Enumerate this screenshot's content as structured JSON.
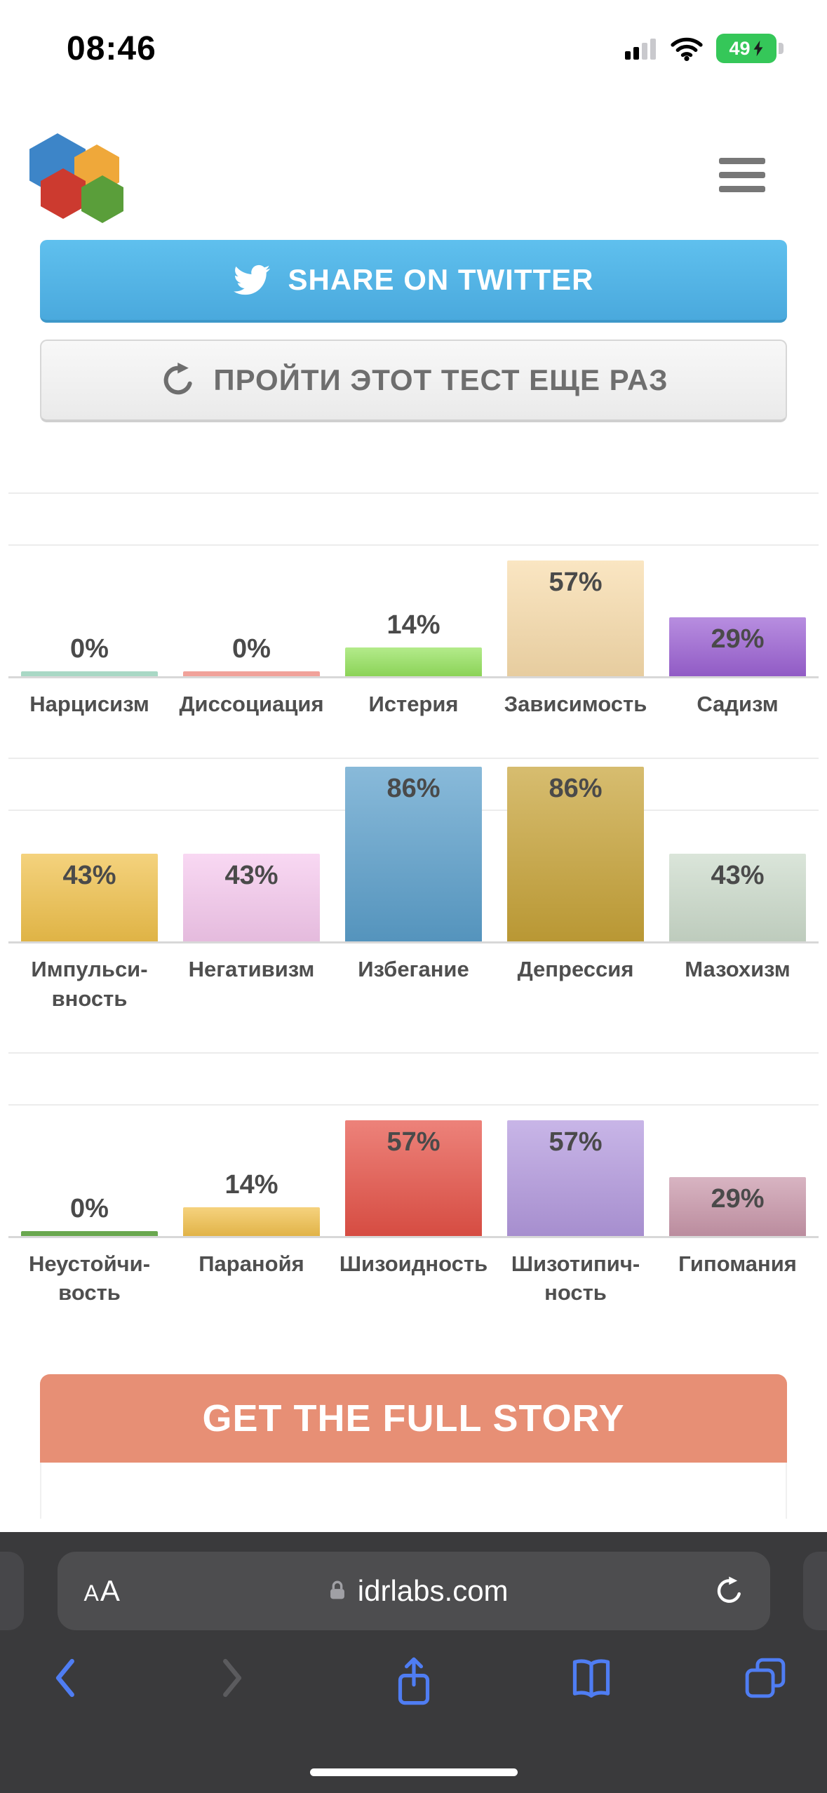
{
  "status_bar": {
    "time": "08:46",
    "battery_percent": "49"
  },
  "header": {
    "logo_icon": "idrlabs-hexagons-logo",
    "menu_icon": "hamburger-menu"
  },
  "actions": {
    "share_twitter": "SHARE ON TWITTER",
    "share_twitter_icon": "twitter-bird",
    "retake": "ПРОЙТИ ЭТОТ ТЕСТ ЕЩЕ РАЗ",
    "retake_icon": "refresh-arrow"
  },
  "chart_data": {
    "type": "bar",
    "unit": "%",
    "ylim": [
      0,
      100
    ],
    "grid": "horizontal-light",
    "value_label_position": "inside-top or above when bar is short",
    "rows": [
      {
        "bars": [
          {
            "label": "Нарцисизм",
            "value": 0,
            "color": "#a9d8c5"
          },
          {
            "label": "Диссоциация",
            "value": 0,
            "color": "#f1a29a"
          },
          {
            "label": "Истерия",
            "value": 14,
            "color": "#96e35e"
          },
          {
            "label": "Зависимость",
            "value": 57,
            "color": "#f8dcab"
          },
          {
            "label": "Садизм",
            "value": 29,
            "color": "#9c62d4"
          }
        ]
      },
      {
        "bars": [
          {
            "label": "Импульси-\nвность",
            "value": 43,
            "color": "#f0c14b"
          },
          {
            "label": "Негативизм",
            "value": 43,
            "color": "#f6c9ee"
          },
          {
            "label": "Избегание",
            "value": 86,
            "color": "#5b9fcb"
          },
          {
            "label": "Депрессия",
            "value": 86,
            "color": "#c7a338"
          },
          {
            "label": "Мазохизм",
            "value": 43,
            "color": "#ccdbcb"
          }
        ]
      },
      {
        "bars": [
          {
            "label": "Неустойчи-\nвость",
            "value": 0,
            "color": "#6aa84f"
          },
          {
            "label": "Паранойя",
            "value": 14,
            "color": "#f2c14d"
          },
          {
            "label": "Шизоидность",
            "value": 57,
            "color": "#e65247"
          },
          {
            "label": "Шизотипич-\nность",
            "value": 57,
            "color": "#b399de"
          },
          {
            "label": "Гипомания",
            "value": 29,
            "color": "#c997aa"
          }
        ]
      }
    ]
  },
  "cta": {
    "title": "GET THE FULL STORY",
    "color": "#e78f75"
  },
  "browser": {
    "reader_label": "AA",
    "lock_icon": "padlock",
    "url": "idrlabs.com",
    "reload_icon": "reload-arrow",
    "toolbar_icons": [
      "back-chevron",
      "forward-chevron",
      "share-sheet",
      "bookmarks-book",
      "tabs-overview"
    ],
    "accent_color": "#4f7df3"
  }
}
